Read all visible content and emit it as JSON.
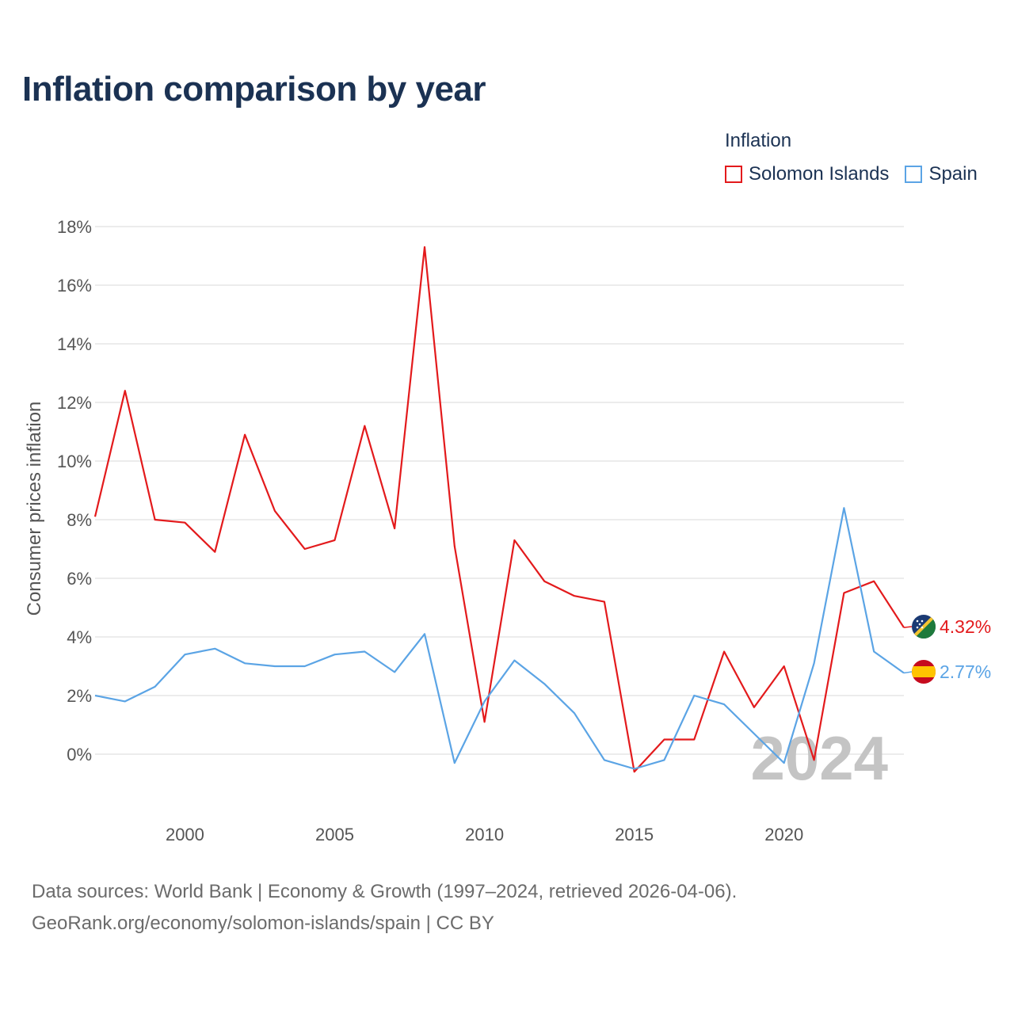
{
  "title": "Inflation comparison by year",
  "legend": {
    "title": "Inflation",
    "items": [
      {
        "label": "Solomon Islands",
        "color": "#e31a1c"
      },
      {
        "label": "Spain",
        "color": "#5ba4e5"
      }
    ]
  },
  "chart_data": {
    "type": "line",
    "title": "Inflation comparison by year",
    "xlabel": "",
    "ylabel": "Consumer prices inflation",
    "x": [
      1997,
      1998,
      1999,
      2000,
      2001,
      2002,
      2003,
      2004,
      2005,
      2006,
      2007,
      2008,
      2009,
      2010,
      2011,
      2012,
      2013,
      2014,
      2015,
      2016,
      2017,
      2018,
      2019,
      2020,
      2021,
      2022,
      2023,
      2024
    ],
    "xlim": [
      1997,
      2024
    ],
    "ylim": [
      -2,
      18
    ],
    "x_ticks": [
      2000,
      2005,
      2010,
      2015,
      2020
    ],
    "x_tick_labels": [
      "2000",
      "2005",
      "2010",
      "2015",
      "2020"
    ],
    "y_ticks": [
      0,
      2,
      4,
      6,
      8,
      10,
      12,
      14,
      16,
      18
    ],
    "y_tick_labels": [
      "0%",
      "2%",
      "4%",
      "6%",
      "8%",
      "10%",
      "12%",
      "14%",
      "16%",
      "18%"
    ],
    "grid": true,
    "legend_position": "top-right",
    "watermark_year": "2024",
    "series": [
      {
        "name": "Solomon Islands",
        "color": "#e31a1c",
        "values": [
          8.1,
          12.4,
          8.0,
          7.9,
          6.9,
          10.9,
          8.3,
          7.0,
          7.3,
          11.2,
          7.7,
          17.3,
          7.1,
          1.1,
          7.3,
          5.9,
          5.4,
          5.2,
          -0.6,
          0.5,
          0.5,
          3.5,
          1.6,
          3.0,
          -0.2,
          5.5,
          5.9,
          4.32
        ],
        "end_label": "4.32%",
        "flag": "solomon-islands-flag-icon"
      },
      {
        "name": "Spain",
        "color": "#5ba4e5",
        "values": [
          2.0,
          1.8,
          2.3,
          3.4,
          3.6,
          3.1,
          3.0,
          3.0,
          3.4,
          3.5,
          2.8,
          4.1,
          -0.3,
          1.8,
          3.2,
          2.4,
          1.4,
          -0.2,
          -0.5,
          -0.2,
          2.0,
          1.7,
          0.7,
          -0.3,
          3.1,
          8.4,
          3.5,
          2.77
        ],
        "end_label": "2.77%",
        "flag": "spain-flag-icon"
      }
    ]
  },
  "source": {
    "line1": "Data sources: World Bank | Economy & Growth (1997–2024, retrieved 2026-04-06).",
    "line2": "GeoRank.org/economy/solomon-islands/spain | CC BY"
  }
}
